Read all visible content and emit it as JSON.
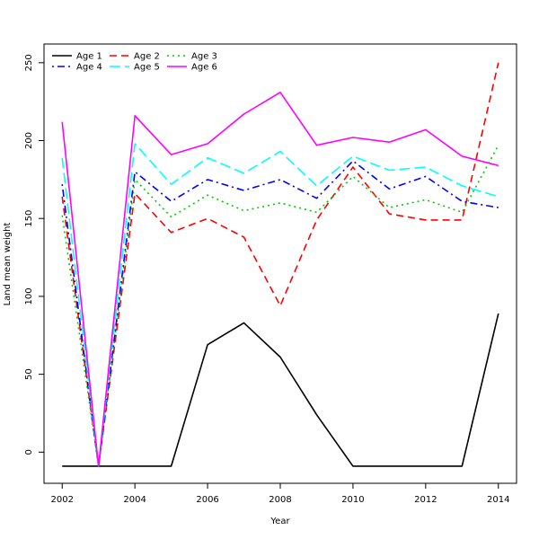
{
  "chart_data": {
    "type": "line",
    "xlabel": "Year",
    "ylabel": "Land mean weight",
    "x": [
      2002,
      2003,
      2004,
      2005,
      2006,
      2007,
      2008,
      2009,
      2010,
      2011,
      2012,
      2013,
      2014
    ],
    "xlim": [
      2001.5,
      2014.5
    ],
    "ylim": [
      -20,
      262
    ],
    "xticks": [
      2002,
      2004,
      2006,
      2008,
      2010,
      2012,
      2014
    ],
    "yticks": [
      0,
      50,
      100,
      150,
      200,
      250
    ],
    "grid": false,
    "legend_position": "top-left",
    "series": [
      {
        "name": "Age 1",
        "color": "#000000",
        "dash": "solid",
        "values": [
          -9,
          -9,
          -9,
          -9,
          69,
          83,
          61,
          24,
          -9,
          -9,
          -9,
          -9,
          89
        ]
      },
      {
        "name": "Age 2",
        "color": "#ff0000",
        "dash": "dashed",
        "values": [
          164,
          -9,
          166,
          141,
          150,
          138,
          94,
          149,
          183,
          153,
          149,
          149,
          250
        ]
      },
      {
        "name": "Age 3",
        "color": "#00cc00",
        "dash": "dotted",
        "values": [
          152,
          -9,
          175,
          151,
          165,
          155,
          160,
          154,
          177,
          157,
          162,
          154,
          197
        ]
      },
      {
        "name": "Age 4",
        "color": "#0000ff",
        "dash": "dotdash",
        "values": [
          172,
          -9,
          180,
          161,
          175,
          168,
          175,
          163,
          187,
          169,
          177,
          161,
          157
        ]
      },
      {
        "name": "Age 5",
        "color": "#00ffff",
        "dash": "longdash",
        "values": [
          189,
          -9,
          198,
          172,
          189,
          179,
          193,
          171,
          190,
          181,
          183,
          171,
          164
        ]
      },
      {
        "name": "Age 6",
        "color": "#ff00ff",
        "dash": "solid",
        "values": [
          212,
          -9,
          216,
          191,
          198,
          217,
          231,
          197,
          202,
          199,
          207,
          190,
          184
        ]
      }
    ]
  }
}
